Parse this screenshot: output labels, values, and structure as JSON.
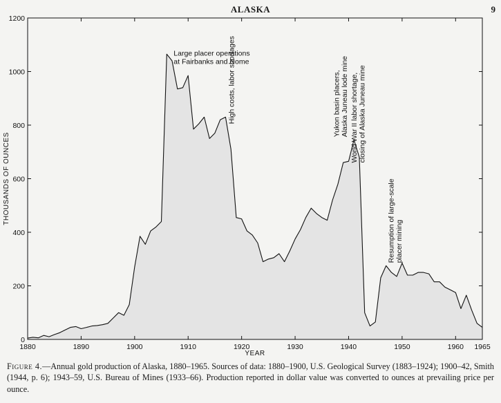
{
  "page": {
    "running_title": "ALASKA",
    "page_number": "9"
  },
  "chart_data": {
    "type": "area",
    "title": "",
    "xlabel": "YEAR",
    "ylabel": "THOUSANDS OF OUNCES",
    "xlim": [
      1880,
      1965
    ],
    "ylim": [
      0,
      1200
    ],
    "x_ticks": [
      1880,
      1890,
      1900,
      1910,
      1920,
      1930,
      1940,
      1950,
      1960,
      1965
    ],
    "y_ticks": [
      0,
      200,
      400,
      600,
      800,
      1000,
      1200
    ],
    "grid": false,
    "legend": "none",
    "fill_color": "#e4e4e4",
    "line_color": "#111111",
    "x": [
      1880,
      1881,
      1882,
      1883,
      1884,
      1885,
      1886,
      1887,
      1888,
      1889,
      1890,
      1891,
      1892,
      1893,
      1894,
      1895,
      1896,
      1897,
      1898,
      1899,
      1900,
      1901,
      1902,
      1903,
      1904,
      1905,
      1906,
      1907,
      1908,
      1909,
      1910,
      1911,
      1912,
      1913,
      1914,
      1915,
      1916,
      1917,
      1918,
      1919,
      1920,
      1921,
      1922,
      1923,
      1924,
      1925,
      1926,
      1927,
      1928,
      1929,
      1930,
      1931,
      1932,
      1933,
      1934,
      1935,
      1936,
      1937,
      1938,
      1939,
      1940,
      1941,
      1942,
      1943,
      1944,
      1945,
      1946,
      1947,
      1948,
      1949,
      1950,
      1951,
      1952,
      1953,
      1954,
      1955,
      1956,
      1957,
      1958,
      1959,
      1960,
      1961,
      1962,
      1963,
      1964,
      1965
    ],
    "values": [
      5,
      8,
      6,
      15,
      10,
      18,
      25,
      35,
      45,
      48,
      40,
      45,
      50,
      52,
      55,
      60,
      80,
      100,
      90,
      130,
      270,
      385,
      355,
      405,
      420,
      440,
      1065,
      1040,
      935,
      940,
      985,
      785,
      805,
      830,
      750,
      770,
      820,
      830,
      710,
      455,
      450,
      405,
      390,
      360,
      290,
      300,
      305,
      320,
      290,
      330,
      375,
      410,
      455,
      490,
      470,
      455,
      445,
      520,
      580,
      660,
      665,
      745,
      680,
      100,
      50,
      65,
      230,
      275,
      250,
      235,
      285,
      240,
      240,
      250,
      250,
      245,
      215,
      215,
      195,
      185,
      175,
      115,
      165,
      110,
      60,
      45
    ],
    "annotations": [
      {
        "text_lines": [
          "Large placer operations",
          "at Fairbanks and Nome"
        ],
        "x": 1906,
        "y": 1065,
        "orientation": "horizontal"
      },
      {
        "text_lines": [
          "High costs, labor shortages"
        ],
        "x": 1917,
        "y": 830,
        "orientation": "vertical"
      },
      {
        "text_lines": [
          "Yukon basin placers,",
          "Alaska Juneau lode mine"
        ],
        "x": 1940,
        "y": 745,
        "orientation": "vertical"
      },
      {
        "text_lines": [
          "World War II labor shortage,",
          "closing of Alaska Juneau mine"
        ],
        "x": 1942,
        "y": 680,
        "orientation": "vertical"
      },
      {
        "text_lines": [
          "Resumption of large-scale",
          "placer mining"
        ],
        "x": 1947,
        "y": 275,
        "orientation": "vertical"
      }
    ]
  },
  "caption": {
    "label": "Figure 4.",
    "text": "—Annual gold production of Alaska, 1880–1965. Sources of data: 1880–1900, U.S. Geological Survey (1883–1924); 1900–42, Smith (1944, p. 6); 1943–59, U.S. Bureau of Mines (1933–66). Production reported in dollar value was converted to ounces at prevailing price per ounce."
  }
}
